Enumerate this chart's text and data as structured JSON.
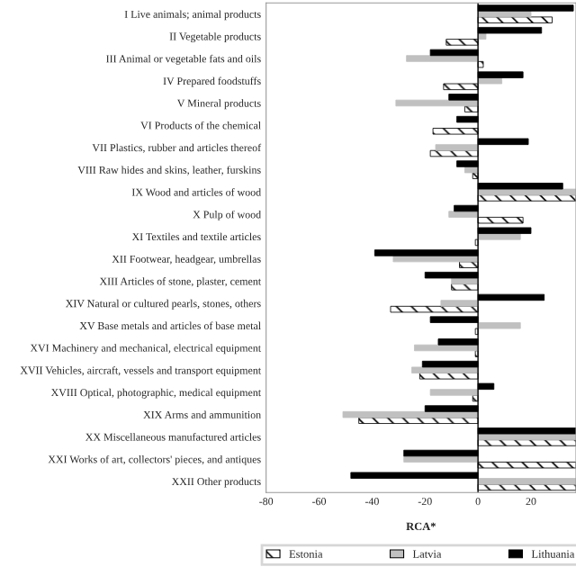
{
  "chart_data": {
    "type": "bar",
    "orientation": "horizontal",
    "xlabel": "RCA*",
    "categories": [
      "I Live animals; animal products",
      "II Vegetable products",
      "III Animal or vegetable fats and oils",
      "IV Prepared foodstuffs",
      "V Mineral products",
      "VI Products of the chemical",
      "VII Plastics, rubber and articles thereof",
      "VIII Raw hides and skins, leather, furskins",
      "IX Wood and articles of wood",
      "X Pulp of wood",
      "XI Textiles and textile articles",
      "XII Footwear, headgear, umbrellas",
      "XIII Articles of stone, plaster, cement",
      "XIV Natural or cultured pearls, stones, others",
      "XV Base metals and articles of base metal",
      "XVI Machinery and mechanical, electrical equipment",
      "XVII Vehicles, aircraft, vessels and transport equipment",
      "XVIII Optical, photographic, medical equipment",
      "XIX Arms and ammunition",
      "XX Miscellaneous manufactured articles",
      "XXI Works of art, collectors' pieces, and antiques",
      "XXII Other products"
    ],
    "series": [
      {
        "name": "Estonia",
        "color": "#000000",
        "values": [
          28,
          -12,
          2,
          -13,
          -5,
          -17,
          -18,
          -2,
          37,
          17,
          -1,
          -7,
          -10,
          -33,
          -1,
          -1,
          -22,
          -2,
          -45,
          37,
          37,
          37
        ]
      },
      {
        "name": "Latvia",
        "color": "#c0c0c0",
        "values": [
          20,
          3,
          -27,
          9,
          -31,
          null,
          -16,
          -5,
          37,
          -11,
          16,
          -32,
          -10,
          -14,
          16,
          -24,
          -25,
          -18,
          -51,
          37,
          -28,
          37
        ]
      },
      {
        "name": "Lithuania",
        "color": "#000000",
        "values": [
          36,
          24,
          -18,
          17,
          -11,
          -8,
          19,
          -8,
          32,
          -9,
          20,
          -39,
          -20,
          25,
          -18,
          -15,
          -21,
          6,
          -20,
          37,
          -28,
          -48
        ]
      }
    ],
    "xlim": [
      -80,
      37
    ],
    "xticks": [
      -80,
      -60,
      -40,
      -20,
      0,
      20
    ],
    "ref_lines": [
      {
        "axis": "x",
        "value": 0,
        "color": "#000000"
      }
    ],
    "grid": false,
    "legend": "bottom"
  }
}
